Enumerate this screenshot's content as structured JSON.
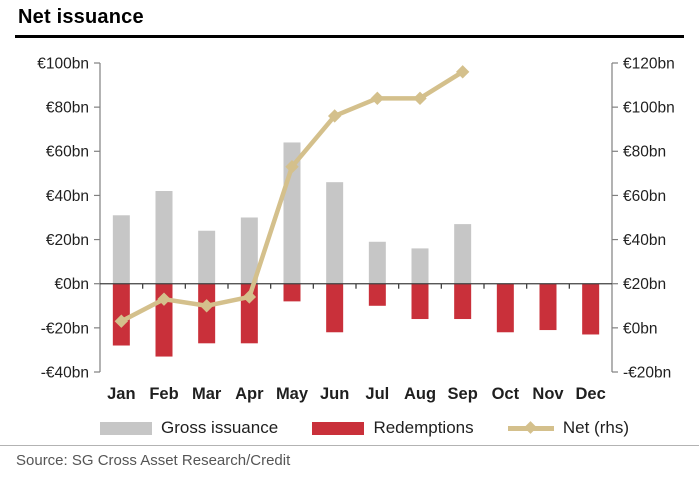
{
  "header": {
    "title": "Net issuance"
  },
  "legend": {
    "items": [
      {
        "label": "Gross issuance"
      },
      {
        "label": "Redemptions"
      },
      {
        "label": "Net (rhs)"
      }
    ]
  },
  "source": {
    "label": "Source: SG Cross Asset Research/Credit"
  },
  "colors": {
    "gross_bar": "#c6c6c6",
    "redemption_bar": "#c9303a",
    "net_line": "#d4c08c",
    "axis_line": "#808080",
    "zero_line": "#404040",
    "axis_text": "#1f1f1f",
    "source_text": "#555555"
  },
  "chart_data": {
    "type": "bar",
    "title": "Net issuance",
    "categories": [
      "Jan",
      "Feb",
      "Mar",
      "Apr",
      "May",
      "Jun",
      "Jul",
      "Aug",
      "Sep",
      "Oct",
      "Nov",
      "Dec"
    ],
    "series": [
      {
        "name": "Gross issuance",
        "type": "bar",
        "axis": "left",
        "values": [
          31,
          42,
          24,
          30,
          64,
          46,
          19,
          16,
          27,
          null,
          null,
          null
        ]
      },
      {
        "name": "Redemptions",
        "type": "bar",
        "axis": "left",
        "values": [
          -28,
          -33,
          -27,
          -27,
          -8,
          -22,
          -10,
          -16,
          -16,
          -22,
          -21,
          -23
        ]
      },
      {
        "name": "Net (rhs)",
        "type": "line",
        "axis": "right",
        "values": [
          3,
          13,
          10,
          14,
          73,
          96,
          104,
          104,
          116,
          null,
          null,
          null
        ]
      }
    ],
    "left_axis": {
      "min": -40,
      "max": 100,
      "step": 20,
      "tick_labels": [
        "€100bn",
        "€80bn",
        "€60bn",
        "€40bn",
        "€20bn",
        "€0bn",
        "-€20bn",
        "-€40bn"
      ]
    },
    "right_axis": {
      "min": -20,
      "max": 120,
      "step": 20,
      "tick_labels": [
        "€120bn",
        "€100bn",
        "€80bn",
        "€60bn",
        "€40bn",
        "€20bn",
        "€0bn",
        "-€20bn"
      ]
    },
    "grid": "zero-line-only",
    "legend_position": "bottom"
  }
}
